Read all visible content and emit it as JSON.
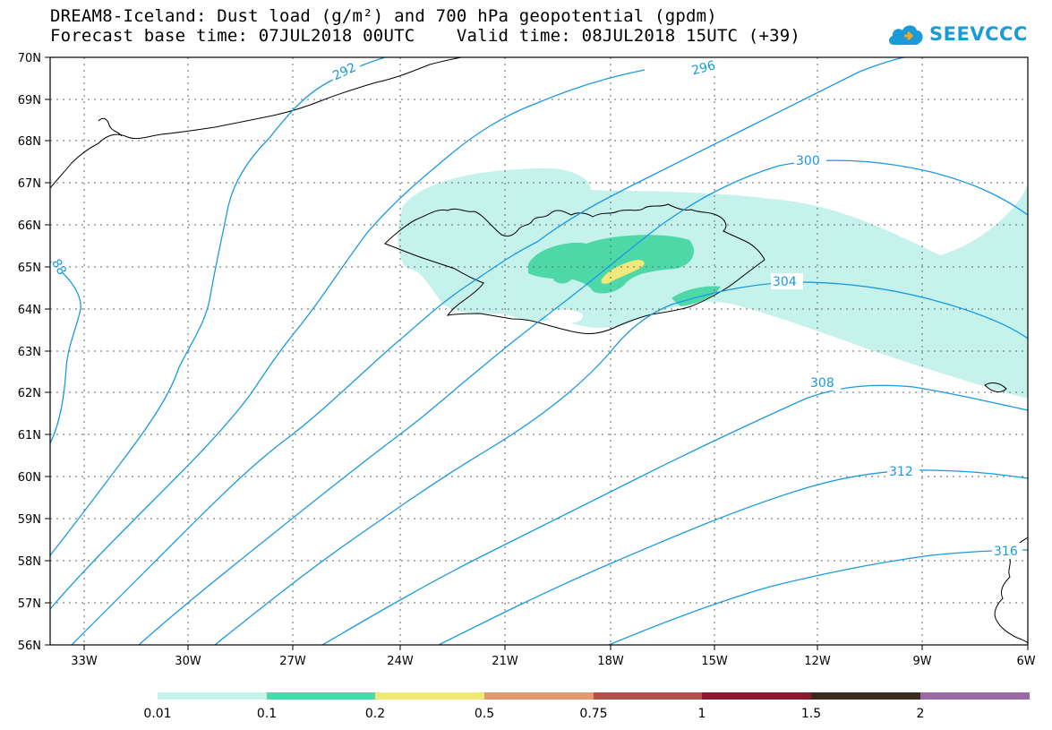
{
  "title_line1": "DREAM8-Iceland: Dust load (g/m²) and 700 hPa geopotential (gpdm)",
  "title_line2": "Forecast base time: 07JUL2018 00UTC    Valid time: 08JUL2018 15UTC (+39)",
  "logo_text": "SEEVCCC",
  "lat_labels": [
    "70N",
    "69N",
    "68N",
    "67N",
    "66N",
    "65N",
    "64N",
    "63N",
    "62N",
    "61N",
    "60N",
    "59N",
    "58N",
    "57N",
    "56N"
  ],
  "lon_labels": [
    "33W",
    "30W",
    "27W",
    "24W",
    "21W",
    "18W",
    "15W",
    "12W",
    "9W",
    "6W"
  ],
  "contour_labels": [
    "292",
    "296",
    "300",
    "304",
    "308",
    "312",
    "316",
    "88"
  ],
  "colorbar": {
    "ticks": [
      "0.01",
      "0.1",
      "0.2",
      "0.5",
      "0.75",
      "1",
      "1.5",
      "2"
    ],
    "colors": [
      "#c5f2ea",
      "#4ed8a8",
      "#f0e87a",
      "#e09a6e",
      "#b0524a",
      "#8a1a30",
      "#3a2a20",
      "#9a6aa8"
    ]
  },
  "colors": {
    "contour": "#1a9ae0",
    "dust_light": "#c5f2ea",
    "dust_mid": "#4ed8a8",
    "dust_high": "#f0e87a"
  }
}
